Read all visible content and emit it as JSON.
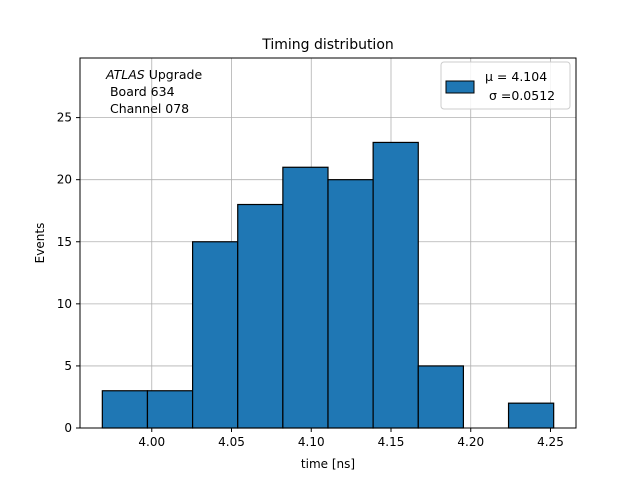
{
  "chart_data": {
    "type": "bar",
    "title": "Timing distribution",
    "xlabel": "time [ns]",
    "ylabel": "Events",
    "bin_edges": [
      3.969,
      3.9973,
      4.0256,
      4.0539,
      4.0822,
      4.1105,
      4.1388,
      4.1671,
      4.1954,
      4.2237,
      4.252
    ],
    "values": [
      3,
      3,
      15,
      18,
      21,
      20,
      23,
      5,
      0,
      2
    ],
    "xlim": [
      3.955,
      4.266
    ],
    "ylim": [
      0,
      29.8
    ],
    "xticks": [
      4.0,
      4.05,
      4.1,
      4.15,
      4.2,
      4.25
    ],
    "xtick_labels": [
      "4.00",
      "4.05",
      "4.10",
      "4.15",
      "4.20",
      "4.25"
    ],
    "yticks": [
      0,
      5,
      10,
      15,
      20,
      25
    ],
    "ytick_labels": [
      "0",
      "5",
      "10",
      "15",
      "20",
      "25"
    ],
    "grid": true,
    "bar_color": "#1f77b4",
    "edge_color": "#000000",
    "legend": {
      "placement": "upper right",
      "line1": "μ = 4.104",
      "line2": "σ =0.0512"
    },
    "annotation": {
      "placement": "upper left",
      "line1_italic": "ATLAS",
      "line1_rest": " Upgrade",
      "line2": " Board 634",
      "line3": " Channel 078"
    }
  }
}
